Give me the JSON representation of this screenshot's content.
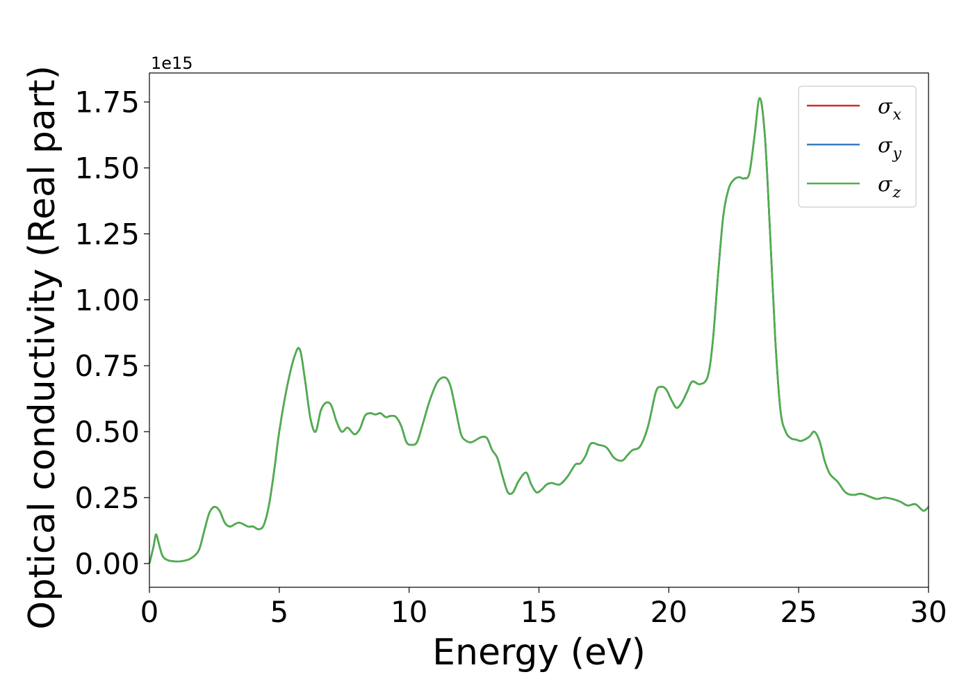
{
  "chart_data": {
    "type": "line",
    "xlabel": "Energy (eV)",
    "ylabel": "Optical conductivity (Real part)",
    "offset_text": "1e15",
    "xlim": [
      0,
      30
    ],
    "ylim": [
      -0.09,
      1.86
    ],
    "x_ticks": [
      0,
      5,
      10,
      15,
      20,
      25,
      30
    ],
    "x_tick_labels": [
      "0",
      "5",
      "10",
      "15",
      "20",
      "25",
      "30"
    ],
    "y_ticks": [
      0.0,
      0.25,
      0.5,
      0.75,
      1.0,
      1.25,
      1.5,
      1.75
    ],
    "y_tick_labels": [
      "0.00",
      "0.25",
      "0.50",
      "0.75",
      "1.00",
      "1.25",
      "1.50",
      "1.75"
    ],
    "grid": false,
    "legend_position": "top-right",
    "x": [
      0,
      0.15,
      0.25,
      0.35,
      0.5,
      0.7,
      1.0,
      1.3,
      1.6,
      1.9,
      2.1,
      2.3,
      2.5,
      2.7,
      2.9,
      3.1,
      3.3,
      3.45,
      3.6,
      3.8,
      4.0,
      4.2,
      4.4,
      4.6,
      4.8,
      5.0,
      5.3,
      5.6,
      5.8,
      6.0,
      6.2,
      6.4,
      6.6,
      6.8,
      7.0,
      7.2,
      7.4,
      7.6,
      7.7,
      7.9,
      8.1,
      8.3,
      8.5,
      8.7,
      8.9,
      9.1,
      9.3,
      9.5,
      9.7,
      9.9,
      10.1,
      10.3,
      10.5,
      10.8,
      11.1,
      11.4,
      11.6,
      11.8,
      12.0,
      12.2,
      12.4,
      12.6,
      12.8,
      13.0,
      13.2,
      13.4,
      13.6,
      13.8,
      14.0,
      14.2,
      14.5,
      14.7,
      14.9,
      15.1,
      15.3,
      15.5,
      15.8,
      16.1,
      16.4,
      16.6,
      16.8,
      17.0,
      17.3,
      17.6,
      17.9,
      18.2,
      18.4,
      18.6,
      18.9,
      19.2,
      19.5,
      19.7,
      19.9,
      20.1,
      20.3,
      20.5,
      20.7,
      20.9,
      21.2,
      21.5,
      21.7,
      21.9,
      22.1,
      22.3,
      22.5,
      22.7,
      22.9,
      23.1,
      23.3,
      23.5,
      23.7,
      23.9,
      24.1,
      24.3,
      24.5,
      24.7,
      24.9,
      25.1,
      25.4,
      25.6,
      25.8,
      26.0,
      26.2,
      26.5,
      26.8,
      27.1,
      27.4,
      27.7,
      28.0,
      28.3,
      28.6,
      28.9,
      29.2,
      29.5,
      29.8,
      30.0
    ],
    "series": [
      {
        "name": "σ",
        "subscript": "x",
        "color": "#d62728",
        "values": [
          0.0,
          0.06,
          0.11,
          0.08,
          0.03,
          0.013,
          0.008,
          0.01,
          0.02,
          0.05,
          0.12,
          0.19,
          0.215,
          0.2,
          0.155,
          0.14,
          0.15,
          0.155,
          0.15,
          0.14,
          0.14,
          0.13,
          0.145,
          0.22,
          0.35,
          0.5,
          0.67,
          0.79,
          0.81,
          0.69,
          0.55,
          0.5,
          0.58,
          0.61,
          0.6,
          0.54,
          0.5,
          0.515,
          0.51,
          0.49,
          0.51,
          0.56,
          0.57,
          0.565,
          0.57,
          0.555,
          0.56,
          0.555,
          0.52,
          0.46,
          0.45,
          0.46,
          0.52,
          0.62,
          0.69,
          0.705,
          0.67,
          0.58,
          0.49,
          0.465,
          0.46,
          0.47,
          0.48,
          0.475,
          0.43,
          0.4,
          0.33,
          0.27,
          0.27,
          0.31,
          0.345,
          0.3,
          0.27,
          0.28,
          0.3,
          0.305,
          0.3,
          0.33,
          0.375,
          0.38,
          0.41,
          0.455,
          0.45,
          0.44,
          0.4,
          0.39,
          0.41,
          0.43,
          0.445,
          0.52,
          0.65,
          0.67,
          0.66,
          0.62,
          0.59,
          0.61,
          0.65,
          0.69,
          0.68,
          0.71,
          0.85,
          1.1,
          1.32,
          1.42,
          1.455,
          1.465,
          1.46,
          1.48,
          1.62,
          1.765,
          1.62,
          1.25,
          0.85,
          0.58,
          0.5,
          0.475,
          0.47,
          0.465,
          0.48,
          0.5,
          0.465,
          0.39,
          0.34,
          0.31,
          0.27,
          0.26,
          0.265,
          0.255,
          0.245,
          0.25,
          0.245,
          0.235,
          0.22,
          0.225,
          0.2,
          0.215
        ]
      },
      {
        "name": "σ",
        "subscript": "y",
        "color": "#3a7bbf",
        "values": [
          0.0,
          0.06,
          0.11,
          0.08,
          0.03,
          0.013,
          0.008,
          0.01,
          0.02,
          0.05,
          0.12,
          0.19,
          0.215,
          0.2,
          0.155,
          0.14,
          0.15,
          0.155,
          0.15,
          0.14,
          0.14,
          0.13,
          0.145,
          0.22,
          0.35,
          0.5,
          0.67,
          0.79,
          0.81,
          0.69,
          0.55,
          0.5,
          0.58,
          0.61,
          0.6,
          0.54,
          0.5,
          0.515,
          0.51,
          0.49,
          0.51,
          0.56,
          0.57,
          0.565,
          0.57,
          0.555,
          0.56,
          0.555,
          0.52,
          0.46,
          0.45,
          0.46,
          0.52,
          0.62,
          0.69,
          0.705,
          0.67,
          0.58,
          0.49,
          0.465,
          0.46,
          0.47,
          0.48,
          0.475,
          0.43,
          0.4,
          0.33,
          0.27,
          0.27,
          0.31,
          0.345,
          0.3,
          0.27,
          0.28,
          0.3,
          0.305,
          0.3,
          0.33,
          0.375,
          0.38,
          0.41,
          0.455,
          0.45,
          0.44,
          0.4,
          0.39,
          0.41,
          0.43,
          0.445,
          0.52,
          0.65,
          0.67,
          0.66,
          0.62,
          0.59,
          0.61,
          0.65,
          0.69,
          0.68,
          0.71,
          0.85,
          1.1,
          1.32,
          1.42,
          1.455,
          1.465,
          1.46,
          1.48,
          1.62,
          1.765,
          1.62,
          1.25,
          0.85,
          0.58,
          0.5,
          0.475,
          0.47,
          0.465,
          0.48,
          0.5,
          0.465,
          0.39,
          0.34,
          0.31,
          0.27,
          0.26,
          0.265,
          0.255,
          0.245,
          0.25,
          0.245,
          0.235,
          0.22,
          0.225,
          0.2,
          0.215
        ]
      },
      {
        "name": "σ",
        "subscript": "z",
        "color": "#4daf4a",
        "values": [
          0.0,
          0.06,
          0.11,
          0.08,
          0.03,
          0.013,
          0.008,
          0.01,
          0.02,
          0.05,
          0.12,
          0.19,
          0.215,
          0.2,
          0.155,
          0.14,
          0.15,
          0.155,
          0.15,
          0.14,
          0.14,
          0.13,
          0.145,
          0.22,
          0.35,
          0.5,
          0.67,
          0.79,
          0.81,
          0.69,
          0.55,
          0.5,
          0.58,
          0.61,
          0.6,
          0.54,
          0.5,
          0.515,
          0.51,
          0.49,
          0.51,
          0.56,
          0.57,
          0.565,
          0.57,
          0.555,
          0.56,
          0.555,
          0.52,
          0.46,
          0.45,
          0.46,
          0.52,
          0.62,
          0.69,
          0.705,
          0.67,
          0.58,
          0.49,
          0.465,
          0.46,
          0.47,
          0.48,
          0.475,
          0.43,
          0.4,
          0.33,
          0.27,
          0.27,
          0.31,
          0.345,
          0.3,
          0.27,
          0.28,
          0.3,
          0.305,
          0.3,
          0.33,
          0.375,
          0.38,
          0.41,
          0.455,
          0.45,
          0.44,
          0.4,
          0.39,
          0.41,
          0.43,
          0.445,
          0.52,
          0.65,
          0.67,
          0.66,
          0.62,
          0.59,
          0.61,
          0.65,
          0.69,
          0.68,
          0.71,
          0.85,
          1.1,
          1.32,
          1.42,
          1.455,
          1.465,
          1.46,
          1.48,
          1.62,
          1.765,
          1.62,
          1.25,
          0.85,
          0.58,
          0.5,
          0.475,
          0.47,
          0.465,
          0.48,
          0.5,
          0.465,
          0.39,
          0.34,
          0.31,
          0.27,
          0.26,
          0.265,
          0.255,
          0.245,
          0.25,
          0.245,
          0.235,
          0.22,
          0.225,
          0.2,
          0.215
        ]
      }
    ]
  }
}
